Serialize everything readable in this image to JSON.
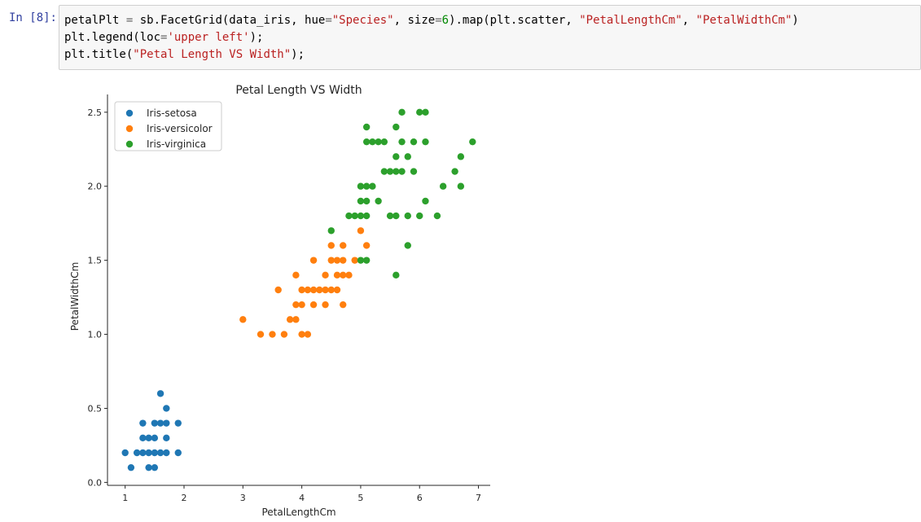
{
  "cell": {
    "prompt": "In [8]:",
    "code_lines": [
      [
        {
          "t": "petalPlt "
        },
        {
          "t": "=",
          "c": "op"
        },
        {
          "t": " sb.FacetGrid(data_iris, hue"
        },
        {
          "t": "=",
          "c": "op"
        },
        {
          "t": "\"Species\"",
          "c": "str"
        },
        {
          "t": ", size"
        },
        {
          "t": "=",
          "c": "op"
        },
        {
          "t": "6",
          "c": "num"
        },
        {
          "t": ").map(plt.scatter, "
        },
        {
          "t": "\"PetalLengthCm\"",
          "c": "str"
        },
        {
          "t": ", "
        },
        {
          "t": "\"PetalWidthCm\"",
          "c": "str"
        },
        {
          "t": ")"
        }
      ],
      [
        {
          "t": "plt.legend(loc"
        },
        {
          "t": "=",
          "c": "op"
        },
        {
          "t": "'upper left'",
          "c": "str"
        },
        {
          "t": ");"
        }
      ],
      [
        {
          "t": "plt.title("
        },
        {
          "t": "\"Petal Length VS Width\"",
          "c": "str"
        },
        {
          "t": ");"
        }
      ]
    ]
  },
  "chart_data": {
    "type": "scatter",
    "title": "Petal Length VS Width",
    "xlabel": "PetalLengthCm",
    "ylabel": "PetalWidthCm",
    "xlim": [
      0.7,
      7.2
    ],
    "ylim": [
      -0.02,
      2.62
    ],
    "xticks": [
      1,
      2,
      3,
      4,
      5,
      6,
      7
    ],
    "yticks": [
      0.0,
      0.5,
      1.0,
      1.5,
      2.0,
      2.5
    ],
    "ytick_labels": [
      "0.0",
      "0.5",
      "1.0",
      "1.5",
      "2.0",
      "2.5"
    ],
    "grid": false,
    "legend_position": "upper left",
    "series": [
      {
        "name": "Iris-setosa",
        "color": "#1f77b4",
        "points": [
          [
            1.0,
            0.2
          ],
          [
            1.1,
            0.1
          ],
          [
            1.2,
            0.2
          ],
          [
            1.3,
            0.2
          ],
          [
            1.3,
            0.3
          ],
          [
            1.3,
            0.4
          ],
          [
            1.4,
            0.2
          ],
          [
            1.4,
            0.3
          ],
          [
            1.4,
            0.1
          ],
          [
            1.5,
            0.2
          ],
          [
            1.5,
            0.3
          ],
          [
            1.5,
            0.4
          ],
          [
            1.5,
            0.1
          ],
          [
            1.6,
            0.2
          ],
          [
            1.6,
            0.4
          ],
          [
            1.6,
            0.6
          ],
          [
            1.7,
            0.2
          ],
          [
            1.7,
            0.3
          ],
          [
            1.7,
            0.4
          ],
          [
            1.7,
            0.5
          ],
          [
            1.9,
            0.2
          ],
          [
            1.9,
            0.4
          ]
        ]
      },
      {
        "name": "Iris-versicolor",
        "color": "#ff7f0e",
        "points": [
          [
            3.0,
            1.1
          ],
          [
            3.3,
            1.0
          ],
          [
            3.5,
            1.0
          ],
          [
            3.6,
            1.3
          ],
          [
            3.7,
            1.0
          ],
          [
            3.8,
            1.1
          ],
          [
            3.9,
            1.1
          ],
          [
            3.9,
            1.2
          ],
          [
            3.9,
            1.4
          ],
          [
            4.0,
            1.0
          ],
          [
            4.0,
            1.2
          ],
          [
            4.0,
            1.3
          ],
          [
            4.1,
            1.0
          ],
          [
            4.1,
            1.3
          ],
          [
            4.2,
            1.2
          ],
          [
            4.2,
            1.3
          ],
          [
            4.2,
            1.5
          ],
          [
            4.3,
            1.3
          ],
          [
            4.4,
            1.2
          ],
          [
            4.4,
            1.3
          ],
          [
            4.4,
            1.4
          ],
          [
            4.5,
            1.3
          ],
          [
            4.5,
            1.5
          ],
          [
            4.5,
            1.6
          ],
          [
            4.6,
            1.3
          ],
          [
            4.6,
            1.4
          ],
          [
            4.6,
            1.5
          ],
          [
            4.7,
            1.2
          ],
          [
            4.7,
            1.4
          ],
          [
            4.7,
            1.5
          ],
          [
            4.7,
            1.6
          ],
          [
            4.8,
            1.4
          ],
          [
            4.9,
            1.5
          ],
          [
            5.0,
            1.7
          ],
          [
            5.1,
            1.6
          ]
        ]
      },
      {
        "name": "Iris-virginica",
        "color": "#2ca02c",
        "points": [
          [
            4.5,
            1.7
          ],
          [
            4.8,
            1.8
          ],
          [
            4.9,
            1.8
          ],
          [
            5.0,
            1.5
          ],
          [
            5.0,
            1.8
          ],
          [
            5.0,
            2.0
          ],
          [
            5.0,
            1.9
          ],
          [
            5.1,
            1.5
          ],
          [
            5.1,
            1.8
          ],
          [
            5.1,
            1.9
          ],
          [
            5.1,
            2.0
          ],
          [
            5.1,
            2.3
          ],
          [
            5.1,
            2.4
          ],
          [
            5.2,
            2.0
          ],
          [
            5.2,
            2.3
          ],
          [
            5.3,
            1.9
          ],
          [
            5.3,
            2.3
          ],
          [
            5.4,
            2.1
          ],
          [
            5.4,
            2.3
          ],
          [
            5.5,
            1.8
          ],
          [
            5.5,
            2.1
          ],
          [
            5.6,
            1.4
          ],
          [
            5.6,
            1.8
          ],
          [
            5.6,
            2.1
          ],
          [
            5.6,
            2.2
          ],
          [
            5.6,
            2.4
          ],
          [
            5.7,
            2.1
          ],
          [
            5.7,
            2.3
          ],
          [
            5.7,
            2.5
          ],
          [
            5.8,
            1.6
          ],
          [
            5.8,
            1.8
          ],
          [
            5.8,
            2.2
          ],
          [
            5.9,
            2.1
          ],
          [
            5.9,
            2.3
          ],
          [
            6.0,
            1.8
          ],
          [
            6.0,
            2.5
          ],
          [
            6.1,
            1.9
          ],
          [
            6.1,
            2.3
          ],
          [
            6.1,
            2.5
          ],
          [
            6.3,
            1.8
          ],
          [
            6.4,
            2.0
          ],
          [
            6.6,
            2.1
          ],
          [
            6.7,
            2.0
          ],
          [
            6.7,
            2.2
          ],
          [
            6.9,
            2.3
          ]
        ]
      }
    ]
  }
}
